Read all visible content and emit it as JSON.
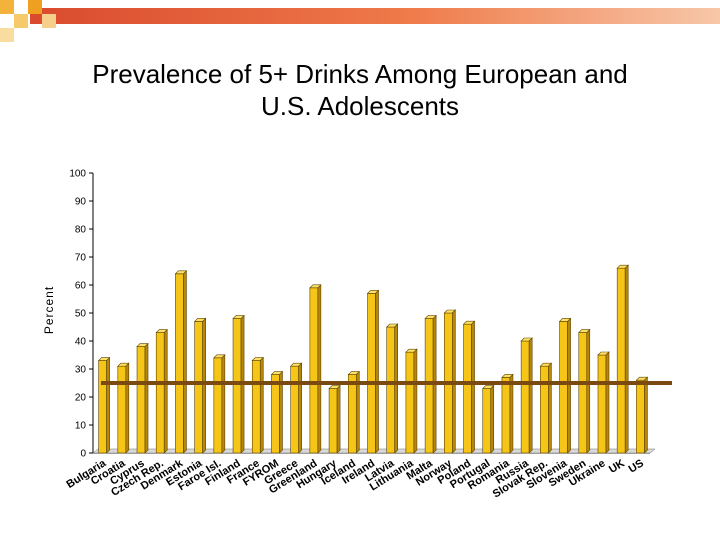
{
  "title_lines": [
    "Prevalence of 5+ Drinks Among European and",
    "U.S. Adolescents"
  ],
  "colors": {
    "bar_fill": "#F5C518",
    "bar_top": "#FFE066",
    "bar_side": "#B8860B",
    "bar_outline": "#5A4300",
    "reference_line": "#7B4A12",
    "header_band": "#E05A3A",
    "header_squares": "#F0A020"
  },
  "chart_data": {
    "type": "bar",
    "title": "Prevalence of 5+ Drinks Among European and U.S. Adolescents",
    "xlabel": "",
    "ylabel": "Percent",
    "ylim": [
      0,
      100
    ],
    "yticks": [
      "0",
      "10",
      "20",
      "30",
      "40",
      "50",
      "60",
      "70",
      "80",
      "90",
      "100"
    ],
    "grid": false,
    "reference_line_value": 25,
    "categories": [
      "Bulgaria",
      "Croatia",
      "Cyprus",
      "Czech Rep.",
      "Denmark",
      "Estonia",
      "Faroe Isl.",
      "Finland",
      "France",
      "FYROM",
      "Greece",
      "Greenland",
      "Hungary",
      "Iceland",
      "Ireland",
      "Latvia",
      "Lithuania",
      "Malta",
      "Norway",
      "Poland",
      "Portugal",
      "Romania",
      "Russia",
      "Slovak Rep.",
      "Slovenia",
      "Sweden",
      "Ukraine",
      "UK",
      "US"
    ],
    "values": [
      33,
      31,
      38,
      43,
      64,
      47,
      34,
      48,
      33,
      28,
      31,
      59,
      23,
      28,
      57,
      45,
      36,
      48,
      50,
      46,
      23,
      27,
      40,
      31,
      47,
      43,
      35,
      66,
      26
    ]
  }
}
